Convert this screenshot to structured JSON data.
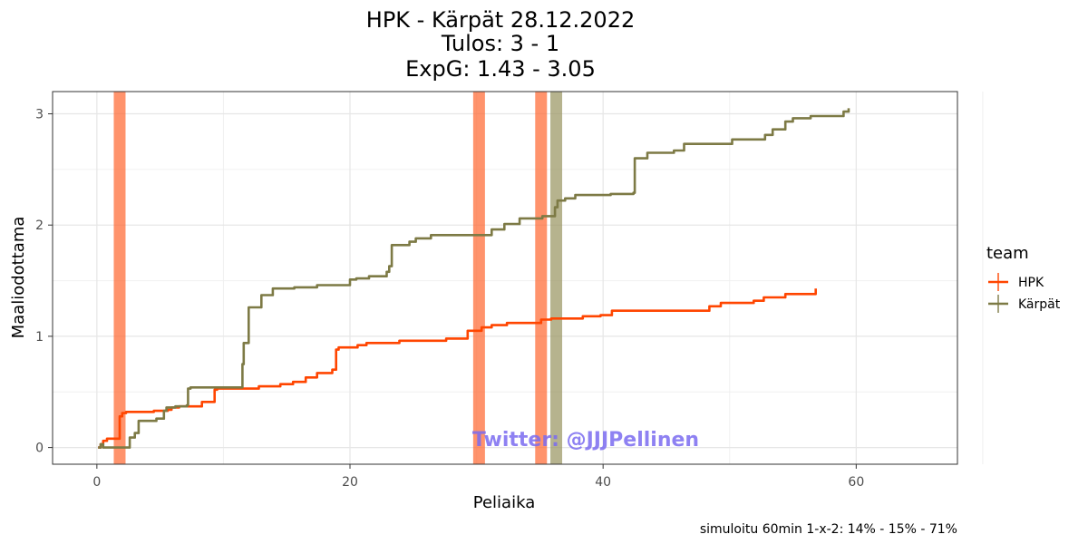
{
  "chart_data": {
    "type": "line",
    "title_lines": [
      "HPK - Kärpät 28.12.2022",
      "Tulos: 3 - 1",
      "ExpG: 1.43 - 3.05"
    ],
    "xlabel": "Peliaika",
    "ylabel": "Maaliodottama",
    "xlim": [
      -3.5,
      68
    ],
    "ylim": [
      -0.15,
      3.2
    ],
    "x_ticks": [
      0,
      20,
      40,
      60
    ],
    "y_ticks": [
      0,
      1,
      2,
      3
    ],
    "legend": {
      "title": "team",
      "position": "right"
    },
    "caption": "simuloitu 60min 1-x-2:  14% - 15% - 71%",
    "watermark": "Twitter: @JJJPellinen",
    "goals": [
      {
        "team": "HPK",
        "time": 1.8
      },
      {
        "team": "HPK",
        "time": 30.2
      },
      {
        "team": "HPK",
        "time": 35.1
      },
      {
        "team": "Kärpät",
        "time": 36.3
      }
    ],
    "series": [
      {
        "name": "HPK",
        "color": "#ff4500",
        "points": [
          [
            0.1,
            0.0
          ],
          [
            0.3,
            0.03
          ],
          [
            0.5,
            0.06
          ],
          [
            0.8,
            0.08
          ],
          [
            1.6,
            0.08
          ],
          [
            1.8,
            0.28
          ],
          [
            2.0,
            0.31
          ],
          [
            2.3,
            0.32
          ],
          [
            4.2,
            0.32
          ],
          [
            4.5,
            0.33
          ],
          [
            5.6,
            0.34
          ],
          [
            5.9,
            0.36
          ],
          [
            6.5,
            0.37
          ],
          [
            8.2,
            0.37
          ],
          [
            8.3,
            0.41
          ],
          [
            9.2,
            0.41
          ],
          [
            9.3,
            0.52
          ],
          [
            9.5,
            0.53
          ],
          [
            12.7,
            0.53
          ],
          [
            12.8,
            0.55
          ],
          [
            14.4,
            0.55
          ],
          [
            14.5,
            0.57
          ],
          [
            15.4,
            0.57
          ],
          [
            15.5,
            0.59
          ],
          [
            16.4,
            0.59
          ],
          [
            16.5,
            0.63
          ],
          [
            17.3,
            0.63
          ],
          [
            17.4,
            0.67
          ],
          [
            18.5,
            0.67
          ],
          [
            18.6,
            0.7
          ],
          [
            18.8,
            0.7
          ],
          [
            18.9,
            0.88
          ],
          [
            19.1,
            0.9
          ],
          [
            20.5,
            0.9
          ],
          [
            20.6,
            0.92
          ],
          [
            21.2,
            0.92
          ],
          [
            21.3,
            0.94
          ],
          [
            23.8,
            0.94
          ],
          [
            23.9,
            0.96
          ],
          [
            27.5,
            0.96
          ],
          [
            27.6,
            0.98
          ],
          [
            29.2,
            0.98
          ],
          [
            29.3,
            1.05
          ],
          [
            30.3,
            1.05
          ],
          [
            30.4,
            1.08
          ],
          [
            31.1,
            1.08
          ],
          [
            31.2,
            1.1
          ],
          [
            32.3,
            1.1
          ],
          [
            32.4,
            1.12
          ],
          [
            35.0,
            1.12
          ],
          [
            35.1,
            1.15
          ],
          [
            35.8,
            1.15
          ],
          [
            35.9,
            1.16
          ],
          [
            38.3,
            1.16
          ],
          [
            38.4,
            1.18
          ],
          [
            39.7,
            1.18
          ],
          [
            39.8,
            1.19
          ],
          [
            40.6,
            1.19
          ],
          [
            40.7,
            1.23
          ],
          [
            48.3,
            1.23
          ],
          [
            48.4,
            1.27
          ],
          [
            49.2,
            1.27
          ],
          [
            49.3,
            1.3
          ],
          [
            51.8,
            1.3
          ],
          [
            51.9,
            1.32
          ],
          [
            52.6,
            1.32
          ],
          [
            52.7,
            1.35
          ],
          [
            54.3,
            1.35
          ],
          [
            54.4,
            1.38
          ],
          [
            56.7,
            1.38
          ],
          [
            56.8,
            1.43
          ]
        ]
      },
      {
        "name": "Kärpät",
        "color": "#7d7a45",
        "points": [
          [
            0.1,
            0.0
          ],
          [
            0.3,
            0.03
          ],
          [
            0.5,
            0.0
          ],
          [
            2.5,
            0.0
          ],
          [
            2.6,
            0.09
          ],
          [
            3.0,
            0.13
          ],
          [
            3.3,
            0.24
          ],
          [
            4.6,
            0.24
          ],
          [
            4.7,
            0.26
          ],
          [
            5.2,
            0.26
          ],
          [
            5.3,
            0.33
          ],
          [
            5.5,
            0.36
          ],
          [
            6.2,
            0.37
          ],
          [
            7.1,
            0.38
          ],
          [
            7.2,
            0.53
          ],
          [
            7.4,
            0.54
          ],
          [
            11.4,
            0.54
          ],
          [
            11.5,
            0.75
          ],
          [
            11.6,
            0.94
          ],
          [
            11.9,
            0.94
          ],
          [
            12.0,
            1.26
          ],
          [
            12.9,
            1.26
          ],
          [
            13.0,
            1.37
          ],
          [
            13.8,
            1.37
          ],
          [
            13.9,
            1.43
          ],
          [
            15.5,
            1.43
          ],
          [
            15.6,
            1.44
          ],
          [
            17.3,
            1.44
          ],
          [
            17.4,
            1.46
          ],
          [
            19.9,
            1.46
          ],
          [
            20.0,
            1.51
          ],
          [
            20.4,
            1.51
          ],
          [
            20.5,
            1.52
          ],
          [
            21.4,
            1.52
          ],
          [
            21.5,
            1.54
          ],
          [
            22.8,
            1.54
          ],
          [
            22.9,
            1.58
          ],
          [
            23.1,
            1.63
          ],
          [
            23.3,
            1.82
          ],
          [
            24.6,
            1.82
          ],
          [
            24.7,
            1.85
          ],
          [
            25.1,
            1.85
          ],
          [
            25.2,
            1.88
          ],
          [
            26.3,
            1.88
          ],
          [
            26.4,
            1.91
          ],
          [
            31.1,
            1.91
          ],
          [
            31.2,
            1.96
          ],
          [
            32.1,
            1.96
          ],
          [
            32.2,
            2.01
          ],
          [
            33.3,
            2.01
          ],
          [
            33.4,
            2.06
          ],
          [
            35.1,
            2.06
          ],
          [
            35.2,
            2.08
          ],
          [
            36.1,
            2.08
          ],
          [
            36.2,
            2.16
          ],
          [
            36.4,
            2.22
          ],
          [
            37.0,
            2.24
          ],
          [
            37.8,
            2.27
          ],
          [
            40.6,
            2.28
          ],
          [
            42.4,
            2.29
          ],
          [
            42.5,
            2.6
          ],
          [
            43.4,
            2.6
          ],
          [
            43.5,
            2.65
          ],
          [
            45.5,
            2.65
          ],
          [
            45.6,
            2.67
          ],
          [
            46.3,
            2.67
          ],
          [
            46.4,
            2.73
          ],
          [
            50.1,
            2.73
          ],
          [
            50.2,
            2.77
          ],
          [
            52.7,
            2.77
          ],
          [
            52.8,
            2.81
          ],
          [
            53.3,
            2.81
          ],
          [
            53.4,
            2.86
          ],
          [
            54.3,
            2.86
          ],
          [
            54.4,
            2.93
          ],
          [
            54.9,
            2.93
          ],
          [
            55.0,
            2.96
          ],
          [
            56.3,
            2.96
          ],
          [
            56.4,
            2.98
          ],
          [
            58.9,
            2.98
          ],
          [
            59.0,
            3.02
          ],
          [
            59.3,
            3.02
          ],
          [
            59.4,
            3.05
          ]
        ]
      }
    ]
  }
}
